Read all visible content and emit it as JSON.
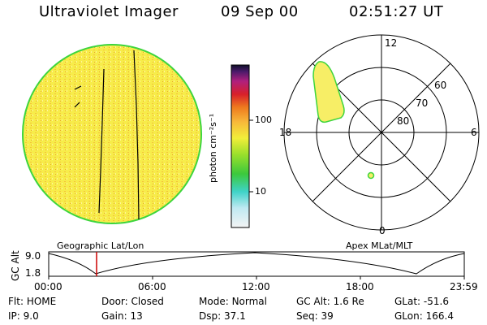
{
  "header": {
    "instrument": "Ultraviolet Imager",
    "date": "09 Sep 00",
    "time": "02:51:27 UT"
  },
  "colorbar": {
    "label": "photon cm⁻²s⁻¹",
    "ticks": [
      "100",
      "10"
    ]
  },
  "polar": {
    "mlt_labels": {
      "top": "12",
      "bottom": "0",
      "left": "18",
      "right": "6"
    },
    "lat_labels": [
      "60",
      "70",
      "80"
    ]
  },
  "panels": {
    "geo_title": "Geographic Lat/Lon",
    "apex_title": "Apex MLat/MLT"
  },
  "altplot": {
    "ylabel": "GC Alt",
    "yticks": [
      "9.0",
      "1.8"
    ],
    "xticks": [
      "00:00",
      "06:00",
      "12:00",
      "18:00",
      "23:59"
    ]
  },
  "status": {
    "row1": [
      {
        "label": "Flt:",
        "value": "HOME"
      },
      {
        "label": "Door:",
        "value": "Closed"
      },
      {
        "label": "Mode:",
        "value": "Normal"
      },
      {
        "label": "GC Alt:",
        "value": "1.6 Re"
      },
      {
        "label": "GLat:",
        "value": "-51.6"
      }
    ],
    "row2": [
      {
        "label": "IP:",
        "value": "9.0"
      },
      {
        "label": "Gain:",
        "value": "13"
      },
      {
        "label": "Dsp:",
        "value": "37.1"
      },
      {
        "label": "Seq:",
        "value": "39"
      },
      {
        "label": "GLon:",
        "value": "166.4"
      }
    ]
  },
  "colors": {
    "disk_fill": "#f7ec4a",
    "disk_edge": "#3dd53d",
    "oval_fill": "#f7ee66",
    "marker": "#cc0000"
  }
}
